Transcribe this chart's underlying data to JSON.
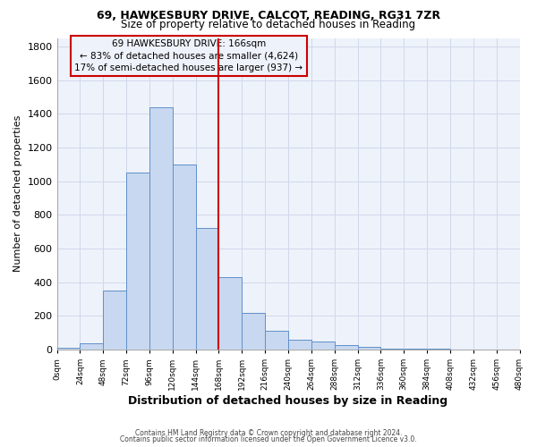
{
  "title1": "69, HAWKESBURY DRIVE, CALCOT, READING, RG31 7ZR",
  "title2": "Size of property relative to detached houses in Reading",
  "xlabel": "Distribution of detached houses by size in Reading",
  "ylabel": "Number of detached properties",
  "bar_color": "#c8d8f0",
  "bar_edge_color": "#6090c8",
  "bin_edges": [
    0,
    24,
    48,
    72,
    96,
    120,
    144,
    168,
    192,
    216,
    240,
    264,
    288,
    312,
    336,
    360,
    384,
    408,
    432,
    456,
    480
  ],
  "bar_heights": [
    10,
    35,
    350,
    1050,
    1440,
    1100,
    720,
    430,
    220,
    110,
    60,
    50,
    25,
    18,
    8,
    5,
    3,
    2,
    1,
    1
  ],
  "vline_x": 168,
  "vline_color": "#cc0000",
  "ylim": [
    0,
    1850
  ],
  "yticks": [
    0,
    200,
    400,
    600,
    800,
    1000,
    1200,
    1400,
    1600,
    1800
  ],
  "xtick_labels": [
    "0sqm",
    "24sqm",
    "48sqm",
    "72sqm",
    "96sqm",
    "120sqm",
    "144sqm",
    "168sqm",
    "192sqm",
    "216sqm",
    "240sqm",
    "264sqm",
    "288sqm",
    "312sqm",
    "336sqm",
    "360sqm",
    "384sqm",
    "408sqm",
    "432sqm",
    "456sqm",
    "480sqm"
  ],
  "annotation_title": "69 HAWKESBURY DRIVE: 166sqm",
  "annotation_line1": "← 83% of detached houses are smaller (4,624)",
  "annotation_line2": "17% of semi-detached houses are larger (937) →",
  "annotation_box_color": "#cc0000",
  "footnote1": "Contains HM Land Registry data © Crown copyright and database right 2024.",
  "footnote2": "Contains public sector information licensed under the Open Government Licence v3.0.",
  "grid_color": "#d0d8ea",
  "background_color": "#eef2fa",
  "fig_background": "#ffffff"
}
